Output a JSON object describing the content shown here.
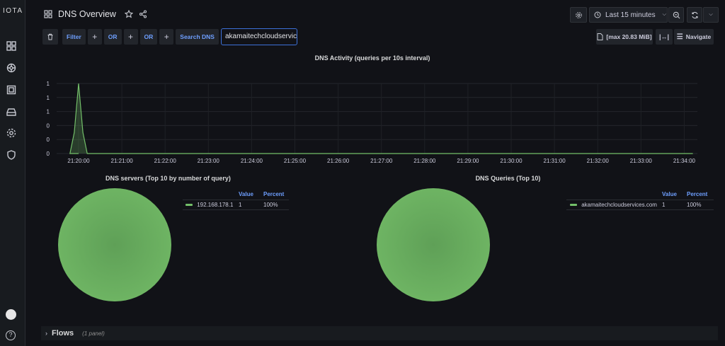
{
  "app": {
    "logo": "IOTA"
  },
  "header": {
    "title": "DNS Overview",
    "time_range": "Last 15 minutes"
  },
  "filterbar": {
    "filter_label": "Filter",
    "or1_label": "OR",
    "or2_label": "OR",
    "search_label": "Search DNS",
    "search_value": "akamaitechcloudservic",
    "size_label": "[max 20.83 MiB]",
    "navigate_label": "Navigate"
  },
  "activity_panel": {
    "title": "DNS Activity (queries per 10s interval)"
  },
  "servers_panel": {
    "title": "DNS servers (Top 10 by number of query)",
    "col_value": "Value",
    "col_percent": "Percent",
    "rows": [
      {
        "name": "192.168.178.1",
        "value": "1",
        "percent": "100%"
      }
    ]
  },
  "queries_panel": {
    "title": "DNS Queries (Top 10)",
    "col_value": "Value",
    "col_percent": "Percent",
    "rows": [
      {
        "name": "akamaitechcloudservices.com",
        "value": "1",
        "percent": "100%"
      }
    ]
  },
  "flows_row": {
    "label": "Flows",
    "count": "(1 panel)"
  },
  "colors": {
    "series": "#73bf69",
    "accent": "#6e9fff",
    "background": "#111217"
  },
  "chart_data": {
    "type": "area",
    "title": "DNS Activity (queries per 10s interval)",
    "x": [
      "21:20:00",
      "21:21:00",
      "21:22:00",
      "21:23:00",
      "21:24:00",
      "21:25:00",
      "21:26:00",
      "21:27:00",
      "21:28:00",
      "21:29:00",
      "21:30:00",
      "21:31:00",
      "21:32:00",
      "21:33:00",
      "21:34:00"
    ],
    "y_tick_labels": [
      "1",
      "1",
      "1",
      "0",
      "0",
      "0"
    ],
    "ylim": [
      0,
      1
    ],
    "series": [
      {
        "points": [
          [
            0,
            0
          ],
          [
            -0.2,
            0
          ],
          [
            -0.1,
            0.3
          ],
          [
            0,
            1
          ],
          [
            0.1,
            0.3
          ],
          [
            0.2,
            0
          ],
          [
            14.2,
            0
          ]
        ]
      }
    ],
    "grid": true
  }
}
